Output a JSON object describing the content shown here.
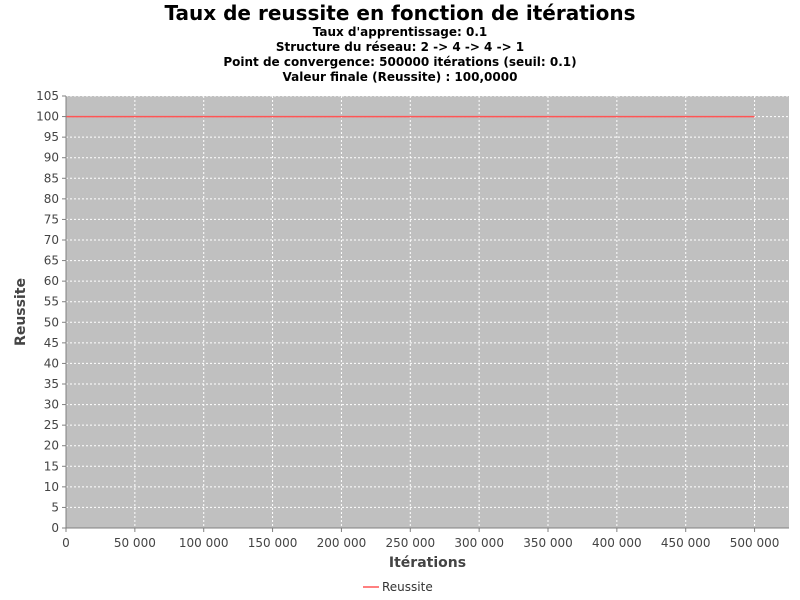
{
  "chart_data": {
    "type": "line",
    "title": "Taux de reussite en fonction de itérations",
    "subtitles": [
      "Taux d'apprentissage: 0.1",
      "Structure du réseau: 2 -> 4 -> 4 -> 1",
      "Point de convergence: 500000 itérations (seuil: 0.1)",
      "Valeur finale (Reussite) : 100,0000"
    ],
    "xlabel": "Itérations",
    "ylabel": "Reussite",
    "xlim": [
      0,
      525000
    ],
    "ylim": [
      0,
      105
    ],
    "x_ticks": [
      0,
      50000,
      100000,
      150000,
      200000,
      250000,
      300000,
      350000,
      400000,
      450000,
      500000
    ],
    "x_tick_labels": [
      "0",
      "50 000",
      "100 000",
      "150 000",
      "200 000",
      "250 000",
      "300 000",
      "350 000",
      "400 000",
      "450 000",
      "500 000"
    ],
    "y_ticks": [
      0,
      5,
      10,
      15,
      20,
      25,
      30,
      35,
      40,
      45,
      50,
      55,
      60,
      65,
      70,
      75,
      80,
      85,
      90,
      95,
      100,
      105
    ],
    "grid": true,
    "legend_position": "bottom-center",
    "plot_background": "#c0c0c0",
    "series": [
      {
        "name": "Reussite",
        "color": "#ff5555",
        "x": [
          0,
          500000
        ],
        "y": [
          100,
          100
        ]
      }
    ]
  }
}
